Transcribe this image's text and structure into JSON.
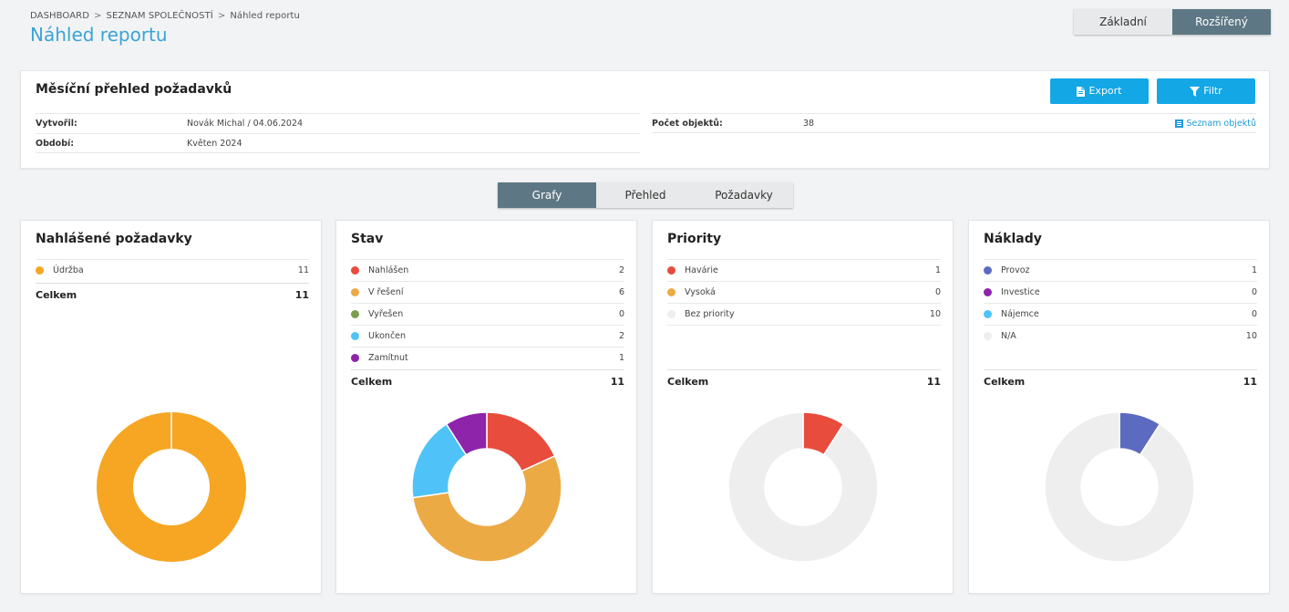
{
  "breadcrumb": {
    "items": [
      "DASHBOARD",
      "SEZNAM SPOLEČNOSTÍ",
      "Náhled reportu"
    ],
    "separator": ">"
  },
  "page": {
    "title": "Náhled reportu"
  },
  "mode_switch": {
    "basic_label": "Základní",
    "advanced_label": "Rozšířený",
    "active": "advanced"
  },
  "report": {
    "title": "Měsíční přehled požadavků",
    "export_label": "Export",
    "filter_label": "Filtr",
    "created_by_label": "Vytvořil:",
    "created_by_value": "Novák Michal / 04.06.2024",
    "period_label": "Období:",
    "period_value": "Květen 2024",
    "object_count_label": "Počet objektů:",
    "object_count_value": "38",
    "object_list_link": "Seznam objektů"
  },
  "tabs": [
    {
      "label": "Grafy",
      "active": true
    },
    {
      "label": "Přehled",
      "active": false
    },
    {
      "label": "Požadavky",
      "active": false
    }
  ],
  "colors": {
    "accent": "#13a7e6",
    "dark_slate": "#5e7784",
    "title_blue": "#3aa3d6",
    "empty": "#eeeeee"
  },
  "chart_data": [
    {
      "type": "pie",
      "title": "Nahlášené požadavky",
      "categories": [
        "Údržba"
      ],
      "values": [
        11
      ],
      "colors": [
        "#f6a623"
      ],
      "total_label": "Celkem",
      "total": 11
    },
    {
      "type": "pie",
      "title": "Stav",
      "categories": [
        "Nahlášen",
        "V řešení",
        "Vyřešen",
        "Ukončen",
        "Zamítnut"
      ],
      "values": [
        2,
        6,
        0,
        2,
        1
      ],
      "colors": [
        "#e74c3c",
        "#ecaa45",
        "#7aa04e",
        "#4fc3f7",
        "#8e24aa"
      ],
      "total_label": "Celkem",
      "total": 11
    },
    {
      "type": "pie",
      "title": "Priority",
      "categories": [
        "Havárie",
        "Vysoká",
        "Bez priority"
      ],
      "values": [
        1,
        0,
        10
      ],
      "colors": [
        "#e74c3c",
        "#ecaa45",
        "#eeeeee"
      ],
      "total_label": "Celkem",
      "total": 11
    },
    {
      "type": "pie",
      "title": "Náklady",
      "categories": [
        "Provoz",
        "Investice",
        "Nájemce",
        "N/A"
      ],
      "values": [
        1,
        0,
        0,
        10
      ],
      "colors": [
        "#5c6bc0",
        "#8e24aa",
        "#4fc3f7",
        "#eeeeee"
      ],
      "total_label": "Celkem",
      "total": 11
    }
  ]
}
